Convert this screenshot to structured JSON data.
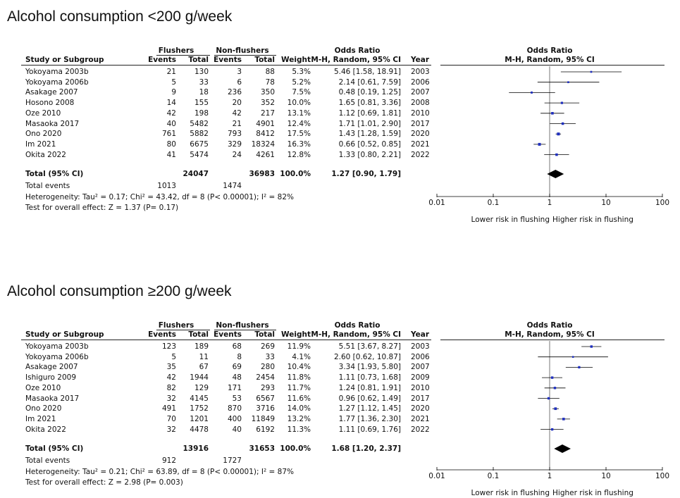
{
  "chart_data": [
    {
      "type": "table",
      "title": "Alcohol consumption <200 g/week",
      "header": {
        "group1": "Flushers",
        "group2": "Non-flushers",
        "or_title": "Odds Ratio",
        "study": "Study or Subgroup",
        "events": "Events",
        "total": "Total",
        "weight": "Weight",
        "method": "M-H, Random, 95% CI",
        "year": "Year",
        "plot_title": "Odds Ratio",
        "plot_method": "M-H, Random, 95% CI"
      },
      "rows": [
        {
          "study": "Yokoyama 2003b",
          "e1": "21",
          "t1": "130",
          "e2": "3",
          "t2": "88",
          "weight": "5.3%",
          "ci_text": "5.46 [1.58, 18.91]",
          "year": "2003",
          "or": 5.46,
          "lo": 1.58,
          "hi": 18.91,
          "w": 5.3
        },
        {
          "study": "Yokoyama 2006b",
          "e1": "5",
          "t1": "33",
          "e2": "6",
          "t2": "78",
          "weight": "5.2%",
          "ci_text": "2.14 [0.61, 7.59]",
          "year": "2006",
          "or": 2.14,
          "lo": 0.61,
          "hi": 7.59,
          "w": 5.2
        },
        {
          "study": "Asakage 2007",
          "e1": "9",
          "t1": "18",
          "e2": "236",
          "t2": "350",
          "weight": "7.5%",
          "ci_text": "0.48 [0.19, 1.25]",
          "year": "2007",
          "or": 0.48,
          "lo": 0.19,
          "hi": 1.25,
          "w": 7.5
        },
        {
          "study": "Hosono 2008",
          "e1": "14",
          "t1": "155",
          "e2": "20",
          "t2": "352",
          "weight": "10.0%",
          "ci_text": "1.65 [0.81, 3.36]",
          "year": "2008",
          "or": 1.65,
          "lo": 0.81,
          "hi": 3.36,
          "w": 10.0
        },
        {
          "study": "Oze 2010",
          "e1": "42",
          "t1": "198",
          "e2": "42",
          "t2": "217",
          "weight": "13.1%",
          "ci_text": "1.12 [0.69, 1.81]",
          "year": "2010",
          "or": 1.12,
          "lo": 0.69,
          "hi": 1.81,
          "w": 13.1
        },
        {
          "study": "Masaoka 2017",
          "e1": "40",
          "t1": "5482",
          "e2": "21",
          "t2": "4901",
          "weight": "12.4%",
          "ci_text": "1.71 [1.01, 2.90]",
          "year": "2017",
          "or": 1.71,
          "lo": 1.01,
          "hi": 2.9,
          "w": 12.4
        },
        {
          "study": "Ono 2020",
          "e1": "761",
          "t1": "5882",
          "e2": "793",
          "t2": "8412",
          "weight": "17.5%",
          "ci_text": "1.43 [1.28, 1.59]",
          "year": "2020",
          "or": 1.43,
          "lo": 1.28,
          "hi": 1.59,
          "w": 17.5
        },
        {
          "study": "Im 2021",
          "e1": "80",
          "t1": "6675",
          "e2": "329",
          "t2": "18324",
          "weight": "16.3%",
          "ci_text": "0.66 [0.52, 0.85]",
          "year": "2021",
          "or": 0.66,
          "lo": 0.52,
          "hi": 0.85,
          "w": 16.3
        },
        {
          "study": "Okita 2022",
          "e1": "41",
          "t1": "5474",
          "e2": "24",
          "t2": "4261",
          "weight": "12.8%",
          "ci_text": "1.33 [0.80, 2.21]",
          "year": "2022",
          "or": 1.33,
          "lo": 0.8,
          "hi": 2.21,
          "w": 12.8
        }
      ],
      "total": {
        "label": "Total (95% CI)",
        "t1": "24047",
        "t2": "36983",
        "weight": "100.0%",
        "ci_text": "1.27 [0.90, 1.79]",
        "or": 1.27,
        "lo": 0.9,
        "hi": 1.79
      },
      "events": {
        "label": "Total events",
        "e1": "1013",
        "e2": "1474"
      },
      "heterogeneity": "Heterogeneity: Tau² = 0.17; Chi² = 43.42, df = 8 (P< 0.00001); I² = 82%",
      "overall": "Test for overall effect: Z = 1.37 (P= 0.17)",
      "axis": {
        "scale": "log",
        "ticks": [
          0.01,
          0.1,
          1,
          10,
          100
        ],
        "tick_labels": [
          "0.01",
          "0.1",
          "1",
          "10",
          "100"
        ],
        "left_label": "Lower risk in flushing",
        "right_label": "Higher risk in flushing"
      }
    },
    {
      "type": "table",
      "title": "Alcohol consumption ≥200 g/week",
      "header": {
        "group1": "Flushers",
        "group2": "Non-flushers",
        "or_title": "Odds Ratio",
        "study": "Study or Subgroup",
        "events": "Events",
        "total": "Total",
        "weight": "Weight",
        "method": "M-H, Random, 95% CI",
        "year": "Year",
        "plot_title": "Odds Ratio",
        "plot_method": "M-H, Random, 95% CI"
      },
      "rows": [
        {
          "study": "Yokoyama 2003b",
          "e1": "123",
          "t1": "189",
          "e2": "68",
          "t2": "269",
          "weight": "11.9%",
          "ci_text": "5.51 [3.67, 8.27]",
          "year": "2003",
          "or": 5.51,
          "lo": 3.67,
          "hi": 8.27,
          "w": 11.9
        },
        {
          "study": "Yokoyama 2006b",
          "e1": "5",
          "t1": "11",
          "e2": "8",
          "t2": "33",
          "weight": "4.1%",
          "ci_text": "2.60 [0.62, 10.87]",
          "year": "2006",
          "or": 2.6,
          "lo": 0.62,
          "hi": 10.87,
          "w": 4.1
        },
        {
          "study": "Asakage 2007",
          "e1": "35",
          "t1": "67",
          "e2": "69",
          "t2": "280",
          "weight": "10.4%",
          "ci_text": "3.34 [1.93, 5.80]",
          "year": "2007",
          "or": 3.34,
          "lo": 1.93,
          "hi": 5.8,
          "w": 10.4
        },
        {
          "study": "Ishiguro 2009",
          "e1": "42",
          "t1": "1944",
          "e2": "48",
          "t2": "2454",
          "weight": "11.8%",
          "ci_text": "1.11 [0.73, 1.68]",
          "year": "2009",
          "or": 1.11,
          "lo": 0.73,
          "hi": 1.68,
          "w": 11.8
        },
        {
          "study": "Oze 2010",
          "e1": "82",
          "t1": "129",
          "e2": "171",
          "t2": "293",
          "weight": "11.7%",
          "ci_text": "1.24 [0.81, 1.91]",
          "year": "2010",
          "or": 1.24,
          "lo": 0.81,
          "hi": 1.91,
          "w": 11.7
        },
        {
          "study": "Masaoka 2017",
          "e1": "32",
          "t1": "4145",
          "e2": "53",
          "t2": "6567",
          "weight": "11.6%",
          "ci_text": "0.96 [0.62, 1.49]",
          "year": "2017",
          "or": 0.96,
          "lo": 0.62,
          "hi": 1.49,
          "w": 11.6
        },
        {
          "study": "Ono 2020",
          "e1": "491",
          "t1": "1752",
          "e2": "870",
          "t2": "3716",
          "weight": "14.0%",
          "ci_text": "1.27 [1.12, 1.45]",
          "year": "2020",
          "or": 1.27,
          "lo": 1.12,
          "hi": 1.45,
          "w": 14.0
        },
        {
          "study": "Im 2021",
          "e1": "70",
          "t1": "1201",
          "e2": "400",
          "t2": "11849",
          "weight": "13.2%",
          "ci_text": "1.77 [1.36, 2.30]",
          "year": "2021",
          "or": 1.77,
          "lo": 1.36,
          "hi": 2.3,
          "w": 13.2
        },
        {
          "study": "Okita 2022",
          "e1": "32",
          "t1": "4478",
          "e2": "40",
          "t2": "6192",
          "weight": "11.3%",
          "ci_text": "1.11 [0.69, 1.76]",
          "year": "2022",
          "or": 1.11,
          "lo": 0.69,
          "hi": 1.76,
          "w": 11.3
        }
      ],
      "total": {
        "label": "Total (95% CI)",
        "t1": "13916",
        "t2": "31653",
        "weight": "100.0%",
        "ci_text": "1.68 [1.20, 2.37]",
        "or": 1.68,
        "lo": 1.2,
        "hi": 2.37
      },
      "events": {
        "label": "Total events",
        "e1": "912",
        "e2": "1727"
      },
      "heterogeneity": "Heterogeneity: Tau² = 0.21; Chi² = 63.89, df = 8 (P< 0.00001); I² = 87%",
      "overall": "Test for overall effect: Z = 2.98 (P= 0.003)",
      "axis": {
        "scale": "log",
        "ticks": [
          0.01,
          0.1,
          1,
          10,
          100
        ],
        "tick_labels": [
          "0.01",
          "0.1",
          "1",
          "10",
          "100"
        ],
        "left_label": "Lower risk in flushing",
        "right_label": "Higher risk in flushing"
      }
    }
  ],
  "colors": {
    "marker": "#1f2fbf",
    "diamond": "#000000",
    "text": "#111111"
  }
}
